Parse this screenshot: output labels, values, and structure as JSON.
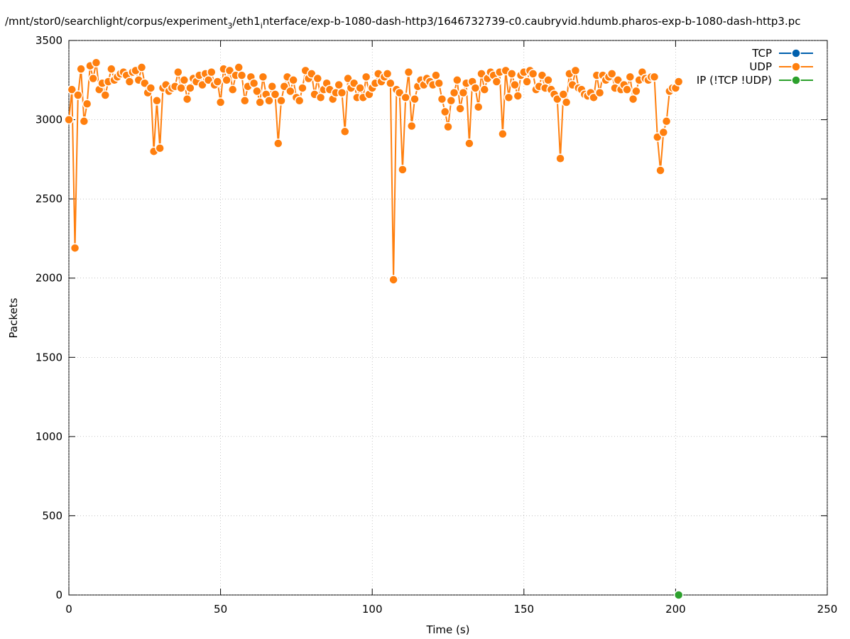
{
  "chart_data": {
    "type": "line",
    "title": [
      "/mnt/stor0/searchlight/corpus/experiment",
      "3",
      "/eth1",
      "i",
      "nterface/exp-b-1080-dash-http3/1646732739-c0.caubryvid.hdumb.pharos-exp-b-1080-dash-http3.pc"
    ],
    "xlabel": "Time (s)",
    "ylabel": "Packets",
    "xlim": [
      0,
      250
    ],
    "xticks": [
      0,
      50,
      100,
      150,
      200,
      250
    ],
    "ylim": [
      0,
      3500
    ],
    "yticks": [
      0,
      500,
      1000,
      1500,
      2000,
      2500,
      3000,
      3500
    ],
    "grid": true,
    "legend": "top-right",
    "series": [
      {
        "name": "TCP",
        "color": "#0060ad",
        "x": [],
        "values": []
      },
      {
        "name": "UDP",
        "color": "#ff7f0e",
        "x": [
          0,
          1,
          2,
          3,
          4,
          5,
          6,
          7,
          8,
          9,
          10,
          11,
          12,
          13,
          14,
          15,
          16,
          17,
          18,
          19,
          20,
          21,
          22,
          23,
          24,
          25,
          26,
          27,
          28,
          29,
          30,
          31,
          32,
          33,
          34,
          35,
          36,
          37,
          38,
          39,
          40,
          41,
          42,
          43,
          44,
          45,
          46,
          47,
          48,
          49,
          50,
          51,
          52,
          53,
          54,
          55,
          56,
          57,
          58,
          59,
          60,
          61,
          62,
          63,
          64,
          65,
          66,
          67,
          68,
          69,
          70,
          71,
          72,
          73,
          74,
          75,
          76,
          77,
          78,
          79,
          80,
          81,
          82,
          83,
          84,
          85,
          86,
          87,
          88,
          89,
          90,
          91,
          92,
          93,
          94,
          95,
          96,
          97,
          98,
          99,
          100,
          101,
          102,
          103,
          104,
          105,
          106,
          107,
          108,
          109,
          110,
          111,
          112,
          113,
          114,
          115,
          116,
          117,
          118,
          119,
          120,
          121,
          122,
          123,
          124,
          125,
          126,
          127,
          128,
          129,
          130,
          131,
          132,
          133,
          134,
          135,
          136,
          137,
          138,
          139,
          140,
          141,
          142,
          143,
          144,
          145,
          146,
          147,
          148,
          149,
          150,
          151,
          152,
          153,
          154,
          155,
          156,
          157,
          158,
          159,
          160,
          161,
          162,
          163,
          164,
          165,
          166,
          167,
          168,
          169,
          170,
          171,
          172,
          173,
          174,
          175,
          176,
          177,
          178,
          179,
          180,
          181,
          182,
          183,
          184,
          185,
          186,
          187,
          188,
          189,
          190,
          191,
          192,
          193,
          194,
          195,
          196,
          197,
          198,
          199,
          200,
          201
        ],
        "values": [
          3000,
          3190,
          2190,
          3155,
          3320,
          2990,
          3100,
          3340,
          3260,
          3360,
          3190,
          3230,
          3155,
          3240,
          3320,
          3250,
          3270,
          3290,
          3300,
          3280,
          3240,
          3300,
          3310,
          3250,
          3330,
          3230,
          3170,
          3200,
          2800,
          3120,
          2820,
          3200,
          3220,
          3180,
          3200,
          3210,
          3300,
          3200,
          3250,
          3130,
          3200,
          3260,
          3240,
          3280,
          3220,
          3290,
          3250,
          3300,
          3220,
          3240,
          3110,
          3320,
          3250,
          3310,
          3190,
          3280,
          3330,
          3280,
          3120,
          3210,
          3270,
          3230,
          3180,
          3110,
          3270,
          3160,
          3120,
          3210,
          3160,
          2850,
          3120,
          3210,
          3270,
          3180,
          3250,
          3140,
          3120,
          3200,
          3310,
          3260,
          3290,
          3160,
          3260,
          3140,
          3190,
          3230,
          3190,
          3130,
          3170,
          3220,
          3170,
          2925,
          3260,
          3200,
          3230,
          3140,
          3200,
          3140,
          3270,
          3160,
          3200,
          3230,
          3290,
          3240,
          3270,
          3290,
          3230,
          1990,
          3190,
          3170,
          2685,
          3140,
          3300,
          2960,
          3130,
          3210,
          3250,
          3220,
          3260,
          3240,
          3220,
          3280,
          3230,
          3130,
          3050,
          2955,
          3120,
          3170,
          3250,
          3070,
          3170,
          3230,
          2850,
          3240,
          3200,
          3080,
          3290,
          3190,
          3260,
          3300,
          3280,
          3240,
          3300,
          2910,
          3310,
          3140,
          3290,
          3220,
          3150,
          3280,
          3300,
          3240,
          3310,
          3290,
          3190,
          3210,
          3280,
          3200,
          3250,
          3190,
          3160,
          3130,
          2755,
          3160,
          3110,
          3290,
          3220,
          3310,
          3200,
          3190,
          3160,
          3150,
          3170,
          3140,
          3280,
          3170,
          3280,
          3250,
          3270,
          3290,
          3200,
          3250,
          3190,
          3220,
          3190,
          3270,
          3130,
          3180,
          3250,
          3300,
          3260,
          3250,
          3270,
          3270,
          2890,
          2680,
          2920,
          2990,
          3180,
          3200,
          3200,
          3240
        ]
      },
      {
        "name": "IP (!TCP  !UDP)",
        "color": "#2ca02c",
        "x": [
          201
        ],
        "values": [
          0
        ]
      }
    ]
  }
}
